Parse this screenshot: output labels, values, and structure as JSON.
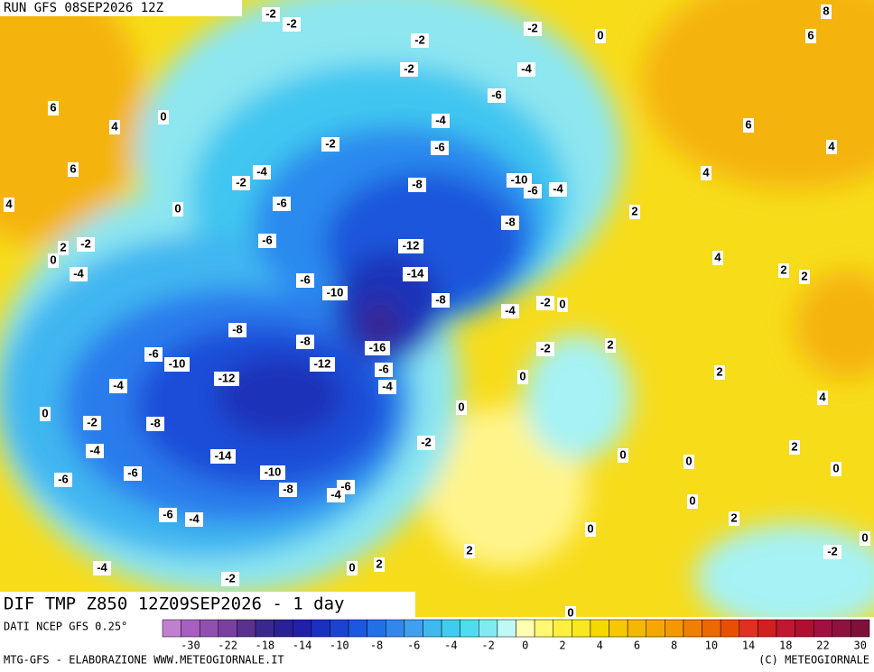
{
  "header": {
    "run": "RUN GFS 08SEP2026 12Z"
  },
  "footer": {
    "title": "DIF TMP Z850 12Z09SEP2026 - 1 day",
    "source": "DATI NCEP GFS 0.25°",
    "credit_left": "MTG-GFS - ELABORAZIONE WWW.METEOGIORNALE.IT",
    "credit_right": "(C) METEOGIORNALE"
  },
  "contour_labels": [
    -2,
    -2,
    -2,
    -2,
    0,
    8,
    6,
    -2,
    -4,
    -6,
    6,
    4,
    0,
    -4,
    -2,
    -6,
    6,
    4,
    6,
    -4,
    -2,
    -8,
    -10,
    -6,
    -4,
    4,
    4,
    0,
    -6,
    -8,
    2,
    2,
    -2,
    0,
    -6,
    -12,
    -4,
    -14,
    4,
    2,
    2,
    -6,
    -10,
    -8,
    -4,
    -2,
    0,
    -8,
    -8,
    -16,
    2,
    -2,
    -6,
    -10,
    -12,
    -6,
    -12,
    2,
    -4,
    -4,
    0,
    4,
    0,
    0,
    -2,
    -8,
    -2,
    -4,
    -14,
    0,
    2,
    0,
    0,
    -6,
    -10,
    -6,
    -6,
    -4,
    -8,
    0,
    -6,
    -4,
    2,
    0,
    0,
    2,
    -2,
    -4,
    0,
    2,
    -2,
    0
  ],
  "colorbar": {
    "ticks": [
      -30,
      -22,
      -18,
      -14,
      -10,
      -8,
      -6,
      -4,
      -2,
      0,
      2,
      4,
      6,
      8,
      10,
      14,
      18,
      22,
      30
    ],
    "colors": [
      "#c080d0",
      "#a860c0",
      "#9050b0",
      "#7a40a0",
      "#5a3090",
      "#3a2890",
      "#2a2098",
      "#2020a8",
      "#1a30c0",
      "#1a44d0",
      "#1a58e0",
      "#2070e8",
      "#3088ee",
      "#40a0f0",
      "#40b8f0",
      "#40ccf0",
      "#50dcf0",
      "#80ecf2",
      "#c0f8f8",
      "#ffffb0",
      "#fff870",
      "#fff040",
      "#f8e820",
      "#f5d800",
      "#f5c800",
      "#f5b800",
      "#f5a800",
      "#f59800",
      "#f08000",
      "#ec6800",
      "#e85000",
      "#e03020",
      "#d02020",
      "#c01830",
      "#b01030",
      "#a01040",
      "#901040",
      "#801038"
    ]
  }
}
